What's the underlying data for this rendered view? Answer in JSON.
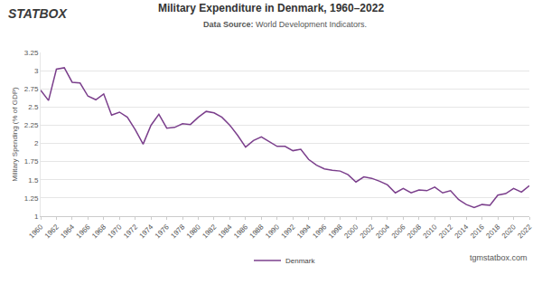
{
  "chart_data": {
    "type": "line",
    "logo": "STATBOX",
    "title": "Military Expenditure in Denmark, 1960–2022",
    "source_label": "Data Source:",
    "source": "World Development Indicators.",
    "watermark": "tgmstatbox.com",
    "y_label": "Military Spending (% of GDP)",
    "x": [
      1960,
      1961,
      1962,
      1963,
      1964,
      1965,
      1966,
      1967,
      1968,
      1969,
      1970,
      1971,
      1972,
      1973,
      1974,
      1975,
      1976,
      1977,
      1978,
      1979,
      1980,
      1981,
      1982,
      1983,
      1984,
      1985,
      1986,
      1987,
      1988,
      1989,
      1990,
      1991,
      1992,
      1993,
      1994,
      1995,
      1996,
      1997,
      1998,
      1999,
      2000,
      2001,
      2002,
      2003,
      2004,
      2005,
      2006,
      2007,
      2008,
      2009,
      2010,
      2011,
      2012,
      2013,
      2014,
      2015,
      2016,
      2017,
      2018,
      2019,
      2020,
      2021,
      2022
    ],
    "series": [
      {
        "name": "Denmark",
        "color": "#7b3f8c",
        "values": [
          2.73,
          2.59,
          3.02,
          3.04,
          2.84,
          2.83,
          2.65,
          2.6,
          2.68,
          2.39,
          2.43,
          2.36,
          2.19,
          1.99,
          2.25,
          2.4,
          2.21,
          2.22,
          2.27,
          2.26,
          2.36,
          2.44,
          2.42,
          2.36,
          2.25,
          2.11,
          1.95,
          2.04,
          2.09,
          2.03,
          1.96,
          1.96,
          1.9,
          1.92,
          1.78,
          1.7,
          1.65,
          1.63,
          1.62,
          1.57,
          1.47,
          1.54,
          1.52,
          1.48,
          1.43,
          1.32,
          1.38,
          1.32,
          1.36,
          1.35,
          1.4,
          1.32,
          1.35,
          1.23,
          1.16,
          1.12,
          1.16,
          1.15,
          1.29,
          1.31,
          1.38,
          1.33,
          1.42
        ]
      }
    ],
    "xlim": [
      1960,
      2022
    ],
    "xticks": [
      1960,
      1962,
      1964,
      1966,
      1968,
      1970,
      1972,
      1974,
      1976,
      1978,
      1980,
      1982,
      1984,
      1986,
      1988,
      1990,
      1992,
      1994,
      1996,
      1998,
      2000,
      2002,
      2004,
      2006,
      2008,
      2010,
      2012,
      2014,
      2016,
      2018,
      2020,
      2022
    ],
    "ylim": [
      1,
      3.25
    ],
    "yticks": [
      1,
      1.25,
      1.5,
      1.75,
      2,
      2.25,
      2.5,
      2.75,
      3,
      3.25
    ],
    "grid": true,
    "legend": "bottom"
  }
}
